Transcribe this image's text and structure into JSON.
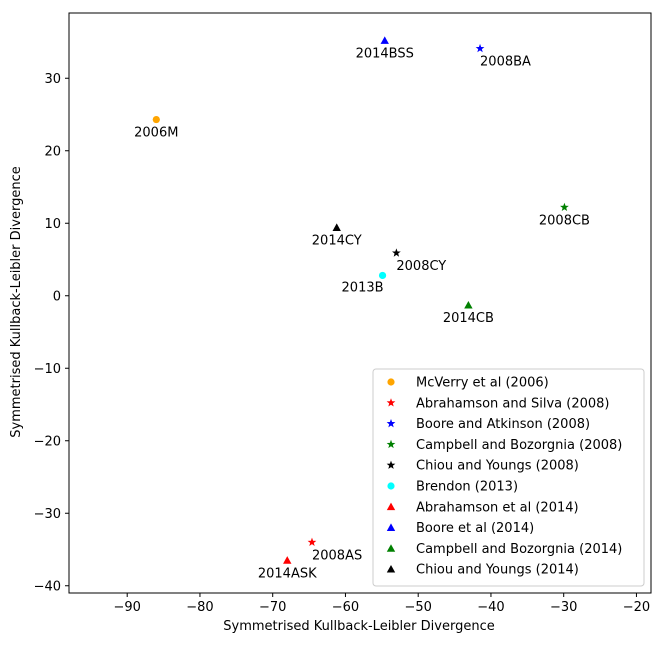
{
  "chart_data": {
    "type": "scatter",
    "title": "",
    "xlabel": "Symmetrised Kullback-Leibler Divergence",
    "ylabel": "Symmetrised Kullback-Leibler Divergence",
    "xlim": [
      -98,
      -18
    ],
    "ylim": [
      -41,
      39
    ],
    "x_ticks": [
      -90,
      -80,
      -70,
      -60,
      -50,
      -40,
      -30,
      -20
    ],
    "y_ticks": [
      -40,
      -30,
      -20,
      -10,
      0,
      10,
      20,
      30
    ],
    "x_tick_labels": [
      "−90",
      "−80",
      "−70",
      "−60",
      "−50",
      "−40",
      "−30",
      "−20"
    ],
    "y_tick_labels": [
      "−40",
      "−30",
      "−20",
      "−10",
      "0",
      "10",
      "20",
      "30"
    ],
    "grid": false,
    "legend_position": "lower right",
    "series": [
      {
        "name": "McVerry et al (2006)",
        "marker": "circle",
        "color": "#ffa500",
        "x": -86.0,
        "y": 24.3,
        "label": "2006M",
        "label_pos": "below"
      },
      {
        "name": "Abrahamson and Silva (2008)",
        "marker": "star",
        "color": "#ff0000",
        "x": -64.6,
        "y": -34.0,
        "label": "2008AS",
        "label_pos": "below-right"
      },
      {
        "name": "Boore and Atkinson (2008)",
        "marker": "star",
        "color": "#0000ff",
        "x": -41.5,
        "y": 34.1,
        "label": "2008BA",
        "label_pos": "below-right"
      },
      {
        "name": "Campbell and Bozorgnia (2008)",
        "marker": "star",
        "color": "#008000",
        "x": -29.9,
        "y": 12.2,
        "label": "2008CB",
        "label_pos": "below"
      },
      {
        "name": "Chiou and Youngs (2008)",
        "marker": "star",
        "color": "#000000",
        "x": -53.0,
        "y": 5.9,
        "label": "2008CY",
        "label_pos": "below-right"
      },
      {
        "name": "Brendon (2013)",
        "marker": "circle",
        "color": "#00ffff",
        "x": -54.9,
        "y": 2.8,
        "label": "2013B",
        "label_pos": "below-left"
      },
      {
        "name": "Abrahamson et al (2014)",
        "marker": "triangle",
        "color": "#ff0000",
        "x": -68.0,
        "y": -36.5,
        "label": "2014ASK",
        "label_pos": "below"
      },
      {
        "name": "Boore et al (2014)",
        "marker": "triangle",
        "color": "#0000ff",
        "x": -54.6,
        "y": 35.2,
        "label": "2014BSS",
        "label_pos": "below"
      },
      {
        "name": "Campbell and Bozorgnia (2014)",
        "marker": "triangle",
        "color": "#008000",
        "x": -43.1,
        "y": -1.3,
        "label": "2014CB",
        "label_pos": "below"
      },
      {
        "name": "Chiou and Youngs (2014)",
        "marker": "triangle",
        "color": "#000000",
        "x": -61.2,
        "y": 9.4,
        "label": "2014CY",
        "label_pos": "below"
      }
    ]
  }
}
